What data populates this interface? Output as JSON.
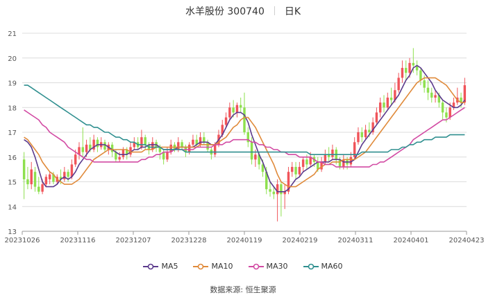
{
  "header": {
    "stock_name": "水羊股份 300740",
    "period": "日K"
  },
  "source_label": "数据来源:  恒生聚源",
  "colors": {
    "up": "#f0545a",
    "down": "#8ee04e",
    "MA5": "#5b3a8c",
    "MA10": "#e08a3a",
    "MA30": "#d24aa3",
    "MA60": "#2f8f8f",
    "grid": "#dcdcdc"
  },
  "chart_data": {
    "type": "candlestick",
    "title": "水羊股份 300740 日K",
    "ylim": [
      13,
      21
    ],
    "y_ticks": [
      "13",
      "14",
      "15",
      "16",
      "17",
      "18",
      "19",
      "20",
      "21"
    ],
    "x_tick_labels": [
      "20231026",
      "20231116",
      "20231207",
      "20231228",
      "20240119",
      "20240219",
      "20240311",
      "20240401",
      "20240423"
    ],
    "x_tick_index": [
      0,
      15,
      30,
      45,
      60,
      75,
      90,
      105,
      120
    ],
    "legend": [
      "MA5",
      "MA10",
      "MA30",
      "MA60"
    ],
    "legend_position": "bottom",
    "candles": [
      [
        15.9,
        15.1,
        16.2,
        14.3
      ],
      [
        15.1,
        14.9,
        15.6,
        14.7
      ],
      [
        14.9,
        15.5,
        15.8,
        14.7
      ],
      [
        15.4,
        14.8,
        15.6,
        14.6
      ],
      [
        14.8,
        14.6,
        15.2,
        14.5
      ],
      [
        14.6,
        14.9,
        15.1,
        14.5
      ],
      [
        14.9,
        15.2,
        15.3,
        14.8
      ],
      [
        15.1,
        15.3,
        15.4,
        14.9
      ],
      [
        15.3,
        15.0,
        15.4,
        14.9
      ],
      [
        15.0,
        15.2,
        15.3,
        14.9
      ],
      [
        15.2,
        15.1,
        15.5,
        14.9
      ],
      [
        15.1,
        15.4,
        15.6,
        15.0
      ],
      [
        15.4,
        15.2,
        15.5,
        15.0
      ],
      [
        15.2,
        15.7,
        15.9,
        15.1
      ],
      [
        15.7,
        16.1,
        16.3,
        15.6
      ],
      [
        16.1,
        16.4,
        16.6,
        15.9
      ],
      [
        16.4,
        16.2,
        17.2,
        16.0
      ],
      [
        16.2,
        16.5,
        16.7,
        16.0
      ],
      [
        16.5,
        16.3,
        16.8,
        16.2
      ],
      [
        16.3,
        16.7,
        16.9,
        16.2
      ],
      [
        16.7,
        16.4,
        16.8,
        16.2
      ],
      [
        16.4,
        16.6,
        16.8,
        16.3
      ],
      [
        16.6,
        16.3,
        16.7,
        16.2
      ],
      [
        16.3,
        16.5,
        16.6,
        16.1
      ],
      [
        16.5,
        16.2,
        16.6,
        16.0
      ],
      [
        16.2,
        15.9,
        16.3,
        15.8
      ],
      [
        15.9,
        16.0,
        16.2,
        15.8
      ],
      [
        16.0,
        16.3,
        16.4,
        15.9
      ],
      [
        16.3,
        16.1,
        16.4,
        15.9
      ],
      [
        16.1,
        16.4,
        16.6,
        16.0
      ],
      [
        16.4,
        16.6,
        16.8,
        16.3
      ],
      [
        16.6,
        16.4,
        16.8,
        16.3
      ],
      [
        16.4,
        16.8,
        17.1,
        16.3
      ],
      [
        16.8,
        16.5,
        16.9,
        16.3
      ],
      [
        16.5,
        16.3,
        16.6,
        16.1
      ],
      [
        16.3,
        16.6,
        16.8,
        16.2
      ],
      [
        16.6,
        16.4,
        16.7,
        16.2
      ],
      [
        16.4,
        16.2,
        16.5,
        15.9
      ],
      [
        16.2,
        15.9,
        16.3,
        15.7
      ],
      [
        15.9,
        16.2,
        16.4,
        15.8
      ],
      [
        16.2,
        16.5,
        16.7,
        16.1
      ],
      [
        16.5,
        16.3,
        16.6,
        16.2
      ],
      [
        16.3,
        16.6,
        16.8,
        16.2
      ],
      [
        16.6,
        16.4,
        16.7,
        16.3
      ],
      [
        16.4,
        16.2,
        16.5,
        16.0
      ],
      [
        16.2,
        16.5,
        16.6,
        16.1
      ],
      [
        16.5,
        16.7,
        16.9,
        16.4
      ],
      [
        16.7,
        16.5,
        16.9,
        16.4
      ],
      [
        16.5,
        16.8,
        17.0,
        16.4
      ],
      [
        16.8,
        16.6,
        17.0,
        16.5
      ],
      [
        16.6,
        16.3,
        16.7,
        16.2
      ],
      [
        16.3,
        16.1,
        16.4,
        15.9
      ],
      [
        16.1,
        16.5,
        16.6,
        16.0
      ],
      [
        16.5,
        16.9,
        17.1,
        16.4
      ],
      [
        16.9,
        17.3,
        17.5,
        16.8
      ],
      [
        17.3,
        17.6,
        17.8,
        17.2
      ],
      [
        17.6,
        18.0,
        18.2,
        17.5
      ],
      [
        18.0,
        17.8,
        18.3,
        17.6
      ],
      [
        17.8,
        18.1,
        18.2,
        17.6
      ],
      [
        18.1,
        18.0,
        18.4,
        17.8
      ],
      [
        18.0,
        17.0,
        18.6,
        16.9
      ],
      [
        17.0,
        16.6,
        17.2,
        16.4
      ],
      [
        16.6,
        15.9,
        16.8,
        15.7
      ],
      [
        15.9,
        16.1,
        16.3,
        15.6
      ],
      [
        16.1,
        15.7,
        16.2,
        15.5
      ],
      [
        15.7,
        15.4,
        15.9,
        15.2
      ],
      [
        15.4,
        14.7,
        15.6,
        14.5
      ],
      [
        14.7,
        14.6,
        15.0,
        14.4
      ],
      [
        14.6,
        14.5,
        14.8,
        14.3
      ],
      [
        14.5,
        14.9,
        15.1,
        13.4
      ],
      [
        14.9,
        14.5,
        15.0,
        13.6
      ],
      [
        14.5,
        14.6,
        14.9,
        13.9
      ],
      [
        14.6,
        15.4,
        15.6,
        14.5
      ],
      [
        15.4,
        15.6,
        15.8,
        15.2
      ],
      [
        15.6,
        15.3,
        15.8,
        15.1
      ],
      [
        15.3,
        15.6,
        15.8,
        15.2
      ],
      [
        15.6,
        15.9,
        16.0,
        15.4
      ],
      [
        15.9,
        15.7,
        16.1,
        15.5
      ],
      [
        15.7,
        16.0,
        16.2,
        15.6
      ],
      [
        16.0,
        15.8,
        16.1,
        15.6
      ],
      [
        15.8,
        15.5,
        16.0,
        15.4
      ],
      [
        15.5,
        15.8,
        16.0,
        15.4
      ],
      [
        15.8,
        16.1,
        16.3,
        15.7
      ],
      [
        16.1,
        16.0,
        16.4,
        15.8
      ],
      [
        16.0,
        16.3,
        16.5,
        15.9
      ],
      [
        16.3,
        15.9,
        16.4,
        15.7
      ],
      [
        15.9,
        15.6,
        16.0,
        15.5
      ],
      [
        15.6,
        15.9,
        16.1,
        15.5
      ],
      [
        15.9,
        15.7,
        16.0,
        15.5
      ],
      [
        15.7,
        16.0,
        16.2,
        15.6
      ],
      [
        16.0,
        16.6,
        16.8,
        15.9
      ],
      [
        16.6,
        17.0,
        17.2,
        16.5
      ],
      [
        17.0,
        16.8,
        17.2,
        16.6
      ],
      [
        16.8,
        17.1,
        17.3,
        16.7
      ],
      [
        17.1,
        17.0,
        17.4,
        16.8
      ],
      [
        17.0,
        17.4,
        17.6,
        16.9
      ],
      [
        17.4,
        17.8,
        18.0,
        17.3
      ],
      [
        17.8,
        18.2,
        18.4,
        17.6
      ],
      [
        18.2,
        18.0,
        18.5,
        17.8
      ],
      [
        18.0,
        18.4,
        18.6,
        17.9
      ],
      [
        18.4,
        18.3,
        18.8,
        18.1
      ],
      [
        18.3,
        18.7,
        19.0,
        18.2
      ],
      [
        18.7,
        19.2,
        19.4,
        18.6
      ],
      [
        19.2,
        19.6,
        19.9,
        19.0
      ],
      [
        19.6,
        19.4,
        19.9,
        19.1
      ],
      [
        19.4,
        19.8,
        20.0,
        19.2
      ],
      [
        19.8,
        19.7,
        20.4,
        19.4
      ],
      [
        19.7,
        19.5,
        19.9,
        19.3
      ],
      [
        19.5,
        19.1,
        19.6,
        18.9
      ],
      [
        19.1,
        18.8,
        19.3,
        18.6
      ],
      [
        18.8,
        18.6,
        19.1,
        18.3
      ],
      [
        18.6,
        18.4,
        18.8,
        18.2
      ],
      [
        18.4,
        18.5,
        18.7,
        18.2
      ],
      [
        18.5,
        18.2,
        18.6,
        18.0
      ],
      [
        18.2,
        17.8,
        18.3,
        17.5
      ],
      [
        17.8,
        17.6,
        18.0,
        17.4
      ],
      [
        17.6,
        18.0,
        18.2,
        17.5
      ],
      [
        18.0,
        18.2,
        18.4,
        17.9
      ],
      [
        18.2,
        18.4,
        18.8,
        18.1
      ],
      [
        18.4,
        18.2,
        18.6,
        18.0
      ],
      [
        18.2,
        18.9,
        19.2,
        18.1
      ]
    ],
    "series": [
      {
        "name": "MA5",
        "values": [
          16.7,
          16.6,
          16.4,
          16.0,
          15.5,
          15.0,
          14.8,
          14.8,
          14.8,
          14.9,
          15.1,
          15.2,
          15.1,
          15.2,
          15.4,
          15.7,
          15.9,
          16.1,
          16.3,
          16.4,
          16.5,
          16.5,
          16.5,
          16.4,
          16.3,
          16.2,
          16.1,
          16.1,
          16.1,
          16.2,
          16.3,
          16.3,
          16.4,
          16.4,
          16.5,
          16.5,
          16.5,
          16.4,
          16.3,
          16.3,
          16.3,
          16.3,
          16.4,
          16.4,
          16.4,
          16.4,
          16.4,
          16.5,
          16.6,
          16.6,
          16.6,
          16.5,
          16.5,
          16.7,
          16.9,
          17.2,
          17.5,
          17.7,
          17.8,
          17.8,
          17.7,
          17.4,
          16.9,
          16.5,
          16.1,
          15.8,
          15.4,
          15.0,
          14.8,
          14.6,
          14.6,
          14.6,
          14.7,
          14.9,
          15.1,
          15.2,
          15.4,
          15.5,
          15.6,
          15.7,
          15.8,
          15.8,
          15.8,
          15.8,
          15.9,
          15.9,
          15.9,
          15.8,
          15.8,
          15.8,
          15.9,
          16.2,
          16.5,
          16.7,
          16.9,
          17.1,
          17.3,
          17.5,
          17.7,
          17.9,
          18.1,
          18.3,
          18.5,
          18.8,
          19.1,
          19.3,
          19.6,
          19.7,
          19.6,
          19.4,
          19.2,
          19.0,
          18.7,
          18.5,
          18.3,
          18.2,
          18.1,
          18.0,
          18.0,
          18.1,
          18.3
        ]
      },
      {
        "name": "MA10",
        "values": [
          16.8,
          16.7,
          16.5,
          16.3,
          16.1,
          15.8,
          15.6,
          15.4,
          15.3,
          15.1,
          15.0,
          14.9,
          14.9,
          14.9,
          15.0,
          15.1,
          15.3,
          15.5,
          15.7,
          15.9,
          16.0,
          16.1,
          16.2,
          16.3,
          16.3,
          16.3,
          16.3,
          16.3,
          16.3,
          16.2,
          16.2,
          16.2,
          16.2,
          16.3,
          16.3,
          16.3,
          16.4,
          16.4,
          16.4,
          16.4,
          16.4,
          16.4,
          16.4,
          16.4,
          16.4,
          16.4,
          16.4,
          16.4,
          16.5,
          16.5,
          16.5,
          16.5,
          16.5,
          16.6,
          16.7,
          16.8,
          17.0,
          17.2,
          17.3,
          17.5,
          17.6,
          17.6,
          17.4,
          17.2,
          16.9,
          16.6,
          16.3,
          16.0,
          15.7,
          15.3,
          15.0,
          14.9,
          14.8,
          14.8,
          14.8,
          14.9,
          15.0,
          15.1,
          15.2,
          15.3,
          15.5,
          15.6,
          15.7,
          15.7,
          15.8,
          15.8,
          15.8,
          15.9,
          15.9,
          15.9,
          15.9,
          16.0,
          16.1,
          16.2,
          16.4,
          16.6,
          16.8,
          17.0,
          17.2,
          17.4,
          17.6,
          17.8,
          18.0,
          18.2,
          18.4,
          18.6,
          18.8,
          19.0,
          19.1,
          19.2,
          19.2,
          19.2,
          19.2,
          19.1,
          19.0,
          18.9,
          18.7,
          18.5,
          18.3,
          18.2,
          18.2
        ]
      },
      {
        "name": "MA30",
        "values": [
          17.9,
          17.8,
          17.7,
          17.6,
          17.5,
          17.3,
          17.2,
          17.0,
          16.9,
          16.8,
          16.7,
          16.6,
          16.4,
          16.3,
          16.2,
          16.1,
          16.0,
          15.9,
          15.9,
          15.8,
          15.8,
          15.8,
          15.8,
          15.8,
          15.8,
          15.8,
          15.8,
          15.8,
          15.8,
          15.8,
          15.8,
          15.8,
          15.9,
          15.9,
          16.0,
          16.0,
          16.1,
          16.1,
          16.2,
          16.2,
          16.2,
          16.3,
          16.3,
          16.3,
          16.3,
          16.3,
          16.3,
          16.4,
          16.4,
          16.4,
          16.4,
          16.4,
          16.5,
          16.5,
          16.5,
          16.6,
          16.6,
          16.7,
          16.7,
          16.7,
          16.7,
          16.7,
          16.6,
          16.6,
          16.5,
          16.5,
          16.4,
          16.4,
          16.3,
          16.3,
          16.2,
          16.2,
          16.1,
          16.1,
          16.1,
          16.0,
          16.0,
          16.0,
          16.0,
          15.9,
          15.8,
          15.8,
          15.7,
          15.7,
          15.7,
          15.6,
          15.6,
          15.6,
          15.6,
          15.6,
          15.6,
          15.6,
          15.6,
          15.6,
          15.6,
          15.7,
          15.7,
          15.8,
          15.8,
          15.9,
          16.0,
          16.1,
          16.2,
          16.3,
          16.4,
          16.5,
          16.7,
          16.8,
          16.9,
          17.0,
          17.1,
          17.2,
          17.3,
          17.4,
          17.5,
          17.5,
          17.6,
          17.7,
          17.8,
          17.9,
          18.0
        ]
      },
      {
        "name": "MA60",
        "values": [
          18.9,
          18.9,
          18.8,
          18.7,
          18.6,
          18.5,
          18.4,
          18.3,
          18.2,
          18.1,
          18.0,
          17.9,
          17.8,
          17.7,
          17.6,
          17.5,
          17.4,
          17.3,
          17.3,
          17.2,
          17.2,
          17.1,
          17.0,
          17.0,
          16.9,
          16.8,
          16.8,
          16.7,
          16.7,
          16.6,
          16.6,
          16.5,
          16.5,
          16.5,
          16.4,
          16.4,
          16.4,
          16.4,
          16.3,
          16.3,
          16.3,
          16.3,
          16.3,
          16.3,
          16.2,
          16.2,
          16.2,
          16.2,
          16.2,
          16.2,
          16.2,
          16.2,
          16.2,
          16.2,
          16.2,
          16.2,
          16.2,
          16.2,
          16.2,
          16.2,
          16.2,
          16.2,
          16.2,
          16.2,
          16.2,
          16.2,
          16.2,
          16.2,
          16.2,
          16.2,
          16.2,
          16.2,
          16.2,
          16.2,
          16.2,
          16.2,
          16.2,
          16.2,
          16.1,
          16.1,
          16.1,
          16.1,
          16.1,
          16.1,
          16.1,
          16.1,
          16.1,
          16.1,
          16.1,
          16.1,
          16.1,
          16.1,
          16.2,
          16.2,
          16.2,
          16.2,
          16.2,
          16.2,
          16.2,
          16.2,
          16.3,
          16.3,
          16.3,
          16.4,
          16.4,
          16.5,
          16.5,
          16.6,
          16.6,
          16.7,
          16.7,
          16.7,
          16.8,
          16.8,
          16.8,
          16.8,
          16.9,
          16.9,
          16.9,
          16.9,
          16.9
        ]
      }
    ]
  }
}
